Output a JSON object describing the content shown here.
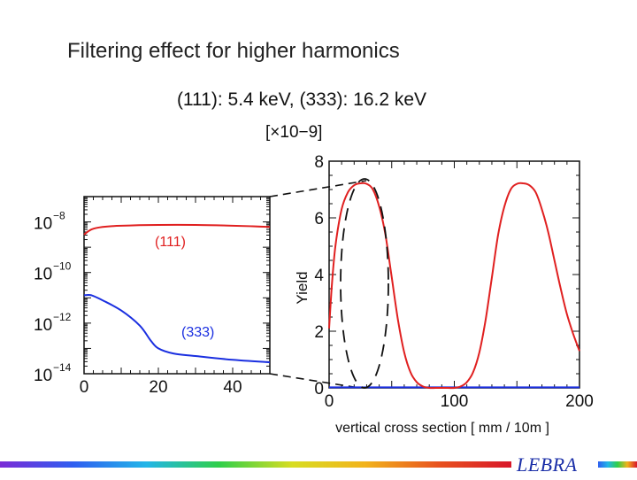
{
  "slide": {
    "title": "Filtering effect for higher harmonics"
  },
  "chart_data": [
    {
      "type": "line",
      "panel": "left (log scale, partial view)",
      "heading": "(111): 5.4 keV,   (333): 16.2 keV",
      "yscale": "log",
      "xlim": [
        0,
        50
      ],
      "ylim_exponent": [
        -14,
        -7
      ],
      "x_ticks": [
        "0",
        "20",
        "40"
      ],
      "y_ticks": [
        {
          "base": "10",
          "exp": "−8",
          "power": -8
        },
        {
          "base": "10",
          "exp": "−10",
          "power": -10
        },
        {
          "base": "10",
          "exp": "−12",
          "power": -12
        },
        {
          "base": "10",
          "exp": "−14",
          "power": -14
        }
      ],
      "series": [
        {
          "name": "(111)",
          "color": "#e02020",
          "x": [
            0,
            2,
            5,
            10,
            20,
            30,
            40,
            50
          ],
          "log10_y": [
            -8.5,
            -8.3,
            -8.2,
            -8.15,
            -8.12,
            -8.12,
            -8.15,
            -8.2
          ]
        },
        {
          "name": "(333)",
          "color": "#1a2fe0",
          "x": [
            0,
            2,
            5,
            10,
            15,
            18,
            20,
            24,
            30,
            40,
            50
          ],
          "log10_y": [
            -10.9,
            -10.9,
            -11.1,
            -11.5,
            -12.1,
            -12.7,
            -13.0,
            -13.2,
            -13.3,
            -13.45,
            -13.55
          ]
        }
      ]
    },
    {
      "type": "line",
      "panel": "right (linear scale)",
      "scale_factor_label": "[×10−9]",
      "ylabel": "Yield",
      "xlabel": "vertical cross section [ mm / 10m ]",
      "xlim": [
        0,
        200
      ],
      "ylim": [
        0,
        8
      ],
      "x_ticks": [
        "0",
        "100",
        "200"
      ],
      "y_ticks": [
        "0",
        "2",
        "4",
        "6",
        "8"
      ],
      "annotation": "dashed ellipse around first peak region (x ≈ 0–40), zoom lines to left panel",
      "series": [
        {
          "name": "(111)",
          "color": "#e02020",
          "x": [
            0,
            2,
            5,
            10,
            15,
            20,
            25,
            30,
            35,
            40,
            45,
            50,
            55,
            60,
            65,
            70,
            75,
            80,
            85,
            90,
            95,
            100,
            105,
            110,
            115,
            120,
            125,
            130,
            135,
            140,
            145,
            150,
            155,
            160,
            165,
            170,
            175,
            180,
            185,
            190,
            195,
            200
          ],
          "y": [
            2.1,
            3.5,
            5.0,
            6.3,
            6.9,
            7.15,
            7.22,
            7.2,
            7.0,
            6.4,
            5.4,
            3.9,
            2.4,
            1.25,
            0.55,
            0.2,
            0.05,
            0.0,
            0.0,
            0.0,
            0.0,
            0.0,
            0.05,
            0.2,
            0.55,
            1.25,
            2.4,
            3.9,
            5.4,
            6.4,
            7.0,
            7.2,
            7.22,
            7.15,
            6.9,
            6.3,
            5.5,
            4.5,
            3.5,
            2.6,
            1.9,
            1.3
          ]
        },
        {
          "name": "(333)",
          "color": "#1a2fe0",
          "x": [
            0,
            200
          ],
          "y": [
            0.02,
            0.02
          ]
        }
      ]
    }
  ],
  "footer": {
    "logo_text": "LEBRA"
  }
}
